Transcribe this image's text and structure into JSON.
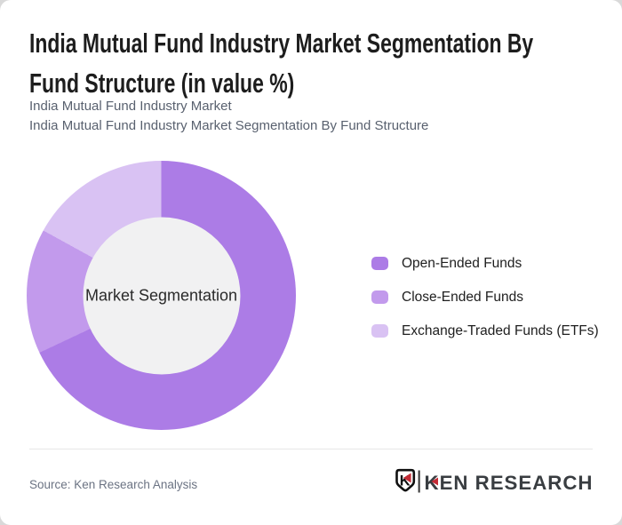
{
  "page": {
    "outer_background": "#d9d9d9",
    "card_background": "#ffffff"
  },
  "header": {
    "title_line1": "India Mutual Fund Industry Market Segmentation By",
    "title_line2": "Fund Structure (in value %)",
    "subtitle_line1": "India Mutual Fund Industry Market",
    "subtitle_line2": "India Mutual Fund Industry Market Segmentation By Fund Structure"
  },
  "chart_data": {
    "type": "pie",
    "donut": true,
    "title": "India Mutual Fund Industry Market Segmentation By Fund Structure (in value %)",
    "center_label": "Market Segmentation",
    "start_angle_deg": 0,
    "legend_position": "right",
    "inner_circle_color": "#f1f1f2",
    "segments": [
      {
        "label": "Open-Ended Funds",
        "value_pct": 68,
        "color": "#ac7ce6"
      },
      {
        "label": "Close-Ended Funds",
        "value_pct": 15,
        "color": "#c29aec"
      },
      {
        "label": "Exchange-Traded Funds (ETFs)",
        "value_pct": 17,
        "color": "#d9c2f3"
      }
    ]
  },
  "footer": {
    "source": "Source: Ken Research Analysis",
    "logo_badge_letter": "K",
    "logo_text": "KEN RESEARCH",
    "logo_red": "#c32b35",
    "logo_dark": "#393d41"
  }
}
